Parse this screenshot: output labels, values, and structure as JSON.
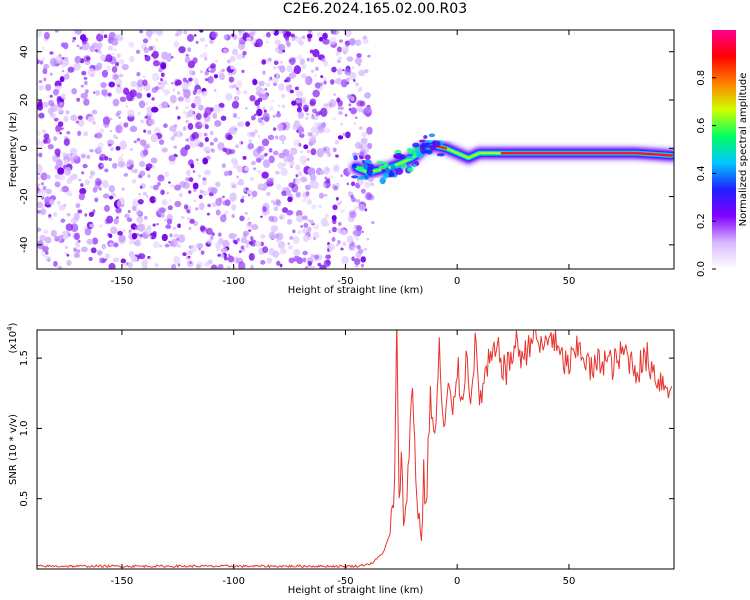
{
  "figure": {
    "title": "C2E6.2024.165.02.00.R03"
  },
  "chart_data": [
    {
      "type": "heatmap",
      "xlabel": "Height of straight line (km)",
      "ylabel": "Frequency (Hz)",
      "xlim": [
        -188,
        97
      ],
      "ylim": [
        -50,
        49
      ],
      "x_ticks": [
        -150,
        -100,
        -50,
        0,
        50
      ],
      "y_ticks": [
        -40,
        -20,
        0,
        20,
        40
      ],
      "colorscale": {
        "label": "Normalized spectral amplitude",
        "range": [
          0,
          1
        ],
        "ticks": [
          0.0,
          0.2,
          0.4,
          0.6,
          0.8
        ],
        "tick_labels": [
          "0.0",
          "0.2",
          "0.4",
          "0.6",
          "0.8"
        ],
        "colors": [
          "#ffffff",
          "#d8b8ff",
          "#8000ff",
          "#2020ff",
          "#00c8ff",
          "#00ff60",
          "#d0ff00",
          "#ff8000",
          "#ff0000",
          "#ff0090"
        ]
      },
      "noise_region": {
        "x_range": [
          -188,
          -43
        ],
        "level": "low, scattered"
      },
      "ridge": [
        {
          "x": -45,
          "y": -8
        },
        {
          "x": -40,
          "y": -10
        },
        {
          "x": -35,
          "y": -9
        },
        {
          "x": -30,
          "y": -8
        },
        {
          "x": -25,
          "y": -6
        },
        {
          "x": -20,
          "y": -4
        },
        {
          "x": -15,
          "y": 0
        },
        {
          "x": -10,
          "y": 1
        },
        {
          "x": -5,
          "y": 0
        },
        {
          "x": 0,
          "y": -2
        },
        {
          "x": 5,
          "y": -4
        },
        {
          "x": 10,
          "y": -2
        },
        {
          "x": 20,
          "y": -2
        },
        {
          "x": 40,
          "y": -2
        },
        {
          "x": 60,
          "y": -2
        },
        {
          "x": 80,
          "y": -2
        },
        {
          "x": 96,
          "y": -3
        }
      ]
    },
    {
      "type": "line",
      "xlabel": "Height of straight line (km)",
      "ylabel": "SNR (10 * v/v)",
      "y_multiplier_label": "(x10",
      "y_multiplier_exponent": "4",
      "y_multiplier_close": ")",
      "xlim": [
        -188,
        97
      ],
      "ylim": [
        0.0,
        1.7
      ],
      "x_ticks": [
        -150,
        -100,
        -50,
        0,
        50
      ],
      "y_ticks": [
        0.5,
        1.0,
        1.5
      ],
      "y_tick_labels": [
        "0.5",
        "1.0",
        "1.5"
      ],
      "series": [
        {
          "color": "#e8342e",
          "x": [
            -188,
            -150,
            -100,
            -60,
            -45,
            -38,
            -33,
            -30,
            -28,
            -27,
            -26,
            -25,
            -24,
            -22,
            -20,
            -18,
            -16,
            -15,
            -14,
            -12,
            -10,
            -8,
            -6,
            -4,
            -2,
            0,
            2,
            4,
            6,
            8,
            10,
            14,
            18,
            22,
            26,
            30,
            34,
            38,
            42,
            46,
            50,
            55,
            60,
            65,
            70,
            75,
            80,
            85,
            90,
            96
          ],
          "y": [
            0.02,
            0.02,
            0.02,
            0.02,
            0.02,
            0.04,
            0.12,
            0.25,
            0.6,
            1.7,
            0.4,
            0.9,
            0.3,
            0.7,
            1.3,
            0.5,
            0.2,
            0.7,
            0.4,
            1.25,
            0.9,
            1.55,
            0.95,
            1.3,
            1.05,
            1.45,
            1.2,
            1.5,
            1.25,
            1.6,
            1.2,
            1.45,
            1.55,
            1.4,
            1.6,
            1.5,
            1.7,
            1.55,
            1.68,
            1.5,
            1.45,
            1.58,
            1.4,
            1.5,
            1.45,
            1.55,
            1.42,
            1.5,
            1.35,
            1.3
          ]
        }
      ]
    }
  ]
}
